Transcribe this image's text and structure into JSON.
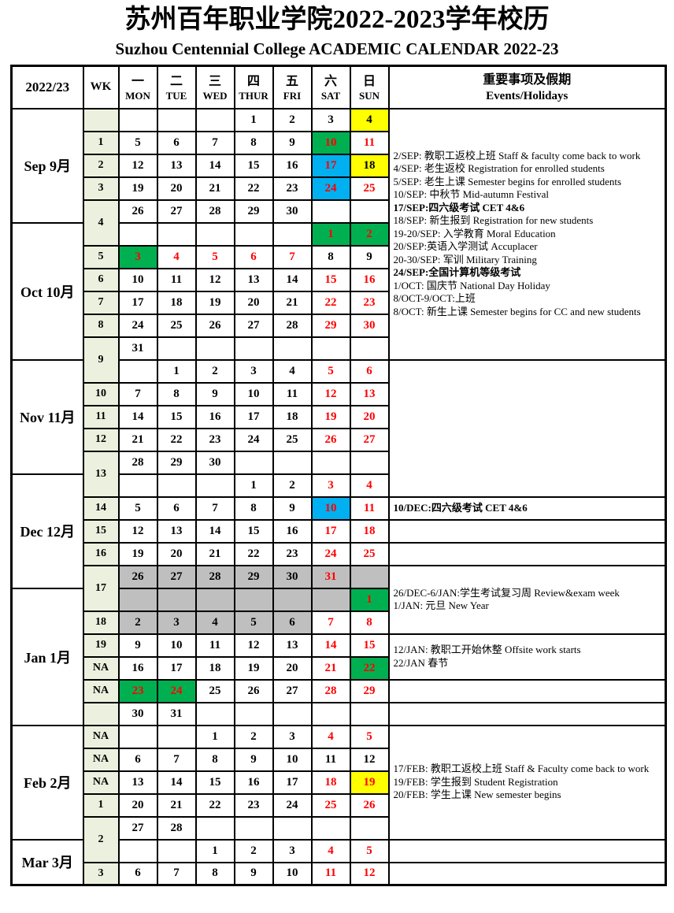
{
  "title": "苏州百年职业学院2022-2023学年校历",
  "subtitle": "Suzhou Centennial College  ACADEMIC CALENDAR 2022-23",
  "colors": {
    "holiday_text": "#ff0000",
    "festival_green": "#00b050",
    "exam_blue": "#00b0f0",
    "highlight_yellow": "#ffff00",
    "break_gray": "#bfbfbf",
    "week_column_bg": "#ebf1de"
  },
  "header": {
    "year": "2022/23",
    "wk": "WK",
    "days": [
      {
        "zh": "一",
        "en": "MON"
      },
      {
        "zh": "二",
        "en": "TUE"
      },
      {
        "zh": "三",
        "en": "WED"
      },
      {
        "zh": "四",
        "en": "THUR"
      },
      {
        "zh": "五",
        "en": "FRI"
      },
      {
        "zh": "六",
        "en": "SAT"
      },
      {
        "zh": "日",
        "en": "SUN"
      }
    ],
    "events_zh": "重要事项及假期",
    "events_en": "Events/Holidays"
  },
  "rows": [
    {
      "month": {
        "label": "Sep 9月",
        "span": 5
      },
      "wk": {
        "v": "",
        "span": 1
      },
      "days": [
        "",
        "",
        "",
        "1",
        "2",
        "3",
        {
          "v": "4",
          "c": "yellow"
        }
      ],
      "events": {
        "span": 11,
        "lines": [
          {
            "t": "2/SEP: 教职工返校上班 Staff & faculty come back to work"
          },
          {
            "t": "4/SEP: 老生返校 Registration for enrolled students"
          },
          {
            "t": "5/SEP: 老生上课 Semester begins for enrolled students"
          },
          {
            "t": "10/SEP: 中秋节 Mid-autumn Festival"
          },
          {
            "t": "17/SEP:四六级考试 CET 4&6",
            "b": true
          },
          {
            "t": "18/SEP: 新生报到 Registration for new students"
          },
          {
            "t": "19-20/SEP: 入学教育 Moral Education"
          },
          {
            "t": "20/SEP:英语入学测试  Accuplacer"
          },
          {
            "t": "20-30/SEP: 军训 Military Training"
          },
          {
            "t": "24/SEP:全国计算机等级考试",
            "b": true
          },
          {
            "t": "1/OCT: 国庆节 National Day Holiday"
          },
          {
            "t": "8/OCT-9/OCT:上班"
          },
          {
            "t": "8/OCT: 新生上课 Semester begins for CC and new students"
          }
        ]
      }
    },
    {
      "wk": {
        "v": "1"
      },
      "days": [
        "5",
        "6",
        "7",
        "8",
        "9",
        {
          "v": "10",
          "c": "green"
        },
        {
          "v": "11",
          "c": "red"
        }
      ]
    },
    {
      "wk": {
        "v": "2"
      },
      "days": [
        "12",
        "13",
        "14",
        "15",
        "16",
        {
          "v": "17",
          "c": "blue"
        },
        {
          "v": "18",
          "c": "yellow"
        }
      ]
    },
    {
      "wk": {
        "v": "3"
      },
      "days": [
        "19",
        "20",
        "21",
        "22",
        "23",
        {
          "v": "24",
          "c": "blue"
        },
        {
          "v": "25",
          "c": "red"
        }
      ]
    },
    {
      "wk": {
        "v": "4",
        "span": 2
      },
      "days": [
        "26",
        "27",
        "28",
        "29",
        "30",
        "",
        ""
      ]
    },
    {
      "month": {
        "label": "Oct 10月",
        "span": 6
      },
      "days": [
        "",
        "",
        "",
        "",
        "",
        {
          "v": "1",
          "c": "green"
        },
        {
          "v": "2",
          "c": "green"
        }
      ]
    },
    {
      "wk": {
        "v": "5"
      },
      "days": [
        {
          "v": "3",
          "c": "green"
        },
        {
          "v": "4",
          "c": "red"
        },
        {
          "v": "5",
          "c": "red"
        },
        {
          "v": "6",
          "c": "red"
        },
        {
          "v": "7",
          "c": "red"
        },
        "8",
        "9"
      ]
    },
    {
      "wk": {
        "v": "6"
      },
      "days": [
        "10",
        "11",
        "12",
        "13",
        "14",
        {
          "v": "15",
          "c": "red"
        },
        {
          "v": "16",
          "c": "red"
        }
      ]
    },
    {
      "wk": {
        "v": "7"
      },
      "days": [
        "17",
        "18",
        "19",
        "20",
        "21",
        {
          "v": "22",
          "c": "red"
        },
        {
          "v": "23",
          "c": "red"
        }
      ]
    },
    {
      "wk": {
        "v": "8"
      },
      "days": [
        "24",
        "25",
        "26",
        "27",
        "28",
        {
          "v": "29",
          "c": "red"
        },
        {
          "v": "30",
          "c": "red"
        }
      ]
    },
    {
      "wk": {
        "v": "9",
        "span": 2
      },
      "days": [
        "31",
        "",
        "",
        "",
        "",
        "",
        ""
      ]
    },
    {
      "month": {
        "label": "Nov 11月",
        "span": 5
      },
      "days": [
        "",
        "1",
        "2",
        "3",
        "4",
        {
          "v": "5",
          "c": "red"
        },
        {
          "v": "6",
          "c": "red"
        }
      ],
      "events": {
        "span": 6,
        "lines": []
      }
    },
    {
      "wk": {
        "v": "10"
      },
      "days": [
        "7",
        "8",
        "9",
        "10",
        "11",
        {
          "v": "12",
          "c": "red"
        },
        {
          "v": "13",
          "c": "red"
        }
      ]
    },
    {
      "wk": {
        "v": "11"
      },
      "days": [
        "14",
        "15",
        "16",
        "17",
        "18",
        {
          "v": "19",
          "c": "red"
        },
        {
          "v": "20",
          "c": "red"
        }
      ]
    },
    {
      "wk": {
        "v": "12"
      },
      "days": [
        "21",
        "22",
        "23",
        "24",
        "25",
        {
          "v": "26",
          "c": "red"
        },
        {
          "v": "27",
          "c": "red"
        }
      ]
    },
    {
      "wk": {
        "v": "13",
        "span": 2
      },
      "days": [
        "28",
        "29",
        "30",
        "",
        "",
        "",
        ""
      ]
    },
    {
      "month": {
        "label": "Dec 12月",
        "span": 5
      },
      "days": [
        "",
        "",
        "",
        "1",
        "2",
        {
          "v": "3",
          "c": "red"
        },
        {
          "v": "4",
          "c": "red"
        }
      ]
    },
    {
      "wk": {
        "v": "14"
      },
      "days": [
        "5",
        "6",
        "7",
        "8",
        "9",
        {
          "v": "10",
          "c": "blue"
        },
        {
          "v": "11",
          "c": "red"
        }
      ],
      "events": {
        "span": 1,
        "lines": [
          {
            "t": "10/DEC:四六级考试 CET 4&6",
            "b": true
          }
        ]
      }
    },
    {
      "wk": {
        "v": "15"
      },
      "days": [
        "12",
        "13",
        "14",
        "15",
        "16",
        {
          "v": "17",
          "c": "red"
        },
        {
          "v": "18",
          "c": "red"
        }
      ],
      "events": {
        "span": 1,
        "lines": []
      }
    },
    {
      "wk": {
        "v": "16"
      },
      "days": [
        "19",
        "20",
        "21",
        "22",
        "23",
        {
          "v": "24",
          "c": "red"
        },
        {
          "v": "25",
          "c": "red"
        }
      ],
      "events": {
        "span": 1,
        "lines": []
      }
    },
    {
      "wk": {
        "v": "17",
        "span": 2
      },
      "days": [
        {
          "v": "26",
          "c": "gray"
        },
        {
          "v": "27",
          "c": "gray"
        },
        {
          "v": "28",
          "c": "gray"
        },
        {
          "v": "29",
          "c": "gray"
        },
        {
          "v": "30",
          "c": "gray"
        },
        {
          "v": "31",
          "c": "grayred"
        },
        {
          "v": "",
          "c": "gray"
        }
      ],
      "events": {
        "span": 3,
        "lines": [
          {
            "t": "26/DEC-6/JAN:学生考试复习周 Review&exam week"
          },
          {
            "t": "1/JAN: 元旦 New Year"
          }
        ]
      }
    },
    {
      "month": {
        "label": "Jan 1月",
        "span": 6
      },
      "days": [
        {
          "v": "",
          "c": "gray"
        },
        {
          "v": "",
          "c": "gray"
        },
        {
          "v": "",
          "c": "gray"
        },
        {
          "v": "",
          "c": "gray"
        },
        {
          "v": "",
          "c": "gray"
        },
        {
          "v": "",
          "c": "gray"
        },
        {
          "v": "1",
          "c": "green"
        }
      ]
    },
    {
      "wk": {
        "v": "18"
      },
      "days": [
        {
          "v": "2",
          "c": "gray"
        },
        {
          "v": "3",
          "c": "gray"
        },
        {
          "v": "4",
          "c": "gray"
        },
        {
          "v": "5",
          "c": "gray"
        },
        {
          "v": "6",
          "c": "gray"
        },
        {
          "v": "7",
          "c": "red"
        },
        {
          "v": "8",
          "c": "red"
        }
      ]
    },
    {
      "wk": {
        "v": "19"
      },
      "days": [
        "9",
        "10",
        "11",
        "12",
        "13",
        {
          "v": "14",
          "c": "red"
        },
        {
          "v": "15",
          "c": "red"
        }
      ],
      "events": {
        "span": 2,
        "lines": [
          {
            "t": "12/JAN: 教职工开始休整 Offsite work starts"
          },
          {
            "t": "22/JAN 春节"
          }
        ]
      }
    },
    {
      "wk": {
        "v": "NA"
      },
      "days": [
        "16",
        "17",
        "18",
        "19",
        "20",
        {
          "v": "21",
          "c": "red"
        },
        {
          "v": "22",
          "c": "green"
        }
      ]
    },
    {
      "wk": {
        "v": "NA"
      },
      "days": [
        {
          "v": "23",
          "c": "green"
        },
        {
          "v": "24",
          "c": "green"
        },
        "25",
        "26",
        "27",
        {
          "v": "28",
          "c": "red"
        },
        {
          "v": "29",
          "c": "red"
        }
      ],
      "events": {
        "span": 1,
        "lines": []
      }
    },
    {
      "wk": {
        "v": ""
      },
      "days": [
        "30",
        "31",
        "",
        "",
        "",
        "",
        ""
      ],
      "events": {
        "span": 1,
        "lines": []
      }
    },
    {
      "month": {
        "label": "Feb 2月",
        "span": 5
      },
      "wk": {
        "v": "NA"
      },
      "days": [
        "",
        "",
        {
          "v": "1",
          "c": "thin"
        },
        "2",
        "3",
        {
          "v": "4",
          "c": "red"
        },
        {
          "v": "5",
          "c": "red"
        }
      ],
      "events": {
        "span": 5,
        "lines": [
          {
            "t": "17/FEB: 教职工返校上班 Staff & Faculty come back to work"
          },
          {
            "t": "19/FEB: 学生报到 Student Registration"
          },
          {
            "t": "20/FEB: 学生上课 New semester begins"
          }
        ]
      }
    },
    {
      "wk": {
        "v": "NA"
      },
      "days": [
        "6",
        "7",
        "8",
        "9",
        "10",
        "11",
        "12"
      ]
    },
    {
      "wk": {
        "v": "NA"
      },
      "days": [
        "13",
        "14",
        "15",
        "16",
        "17",
        {
          "v": "18",
          "c": "red"
        },
        {
          "v": "19",
          "c": "yellowred"
        }
      ]
    },
    {
      "wk": {
        "v": "1"
      },
      "days": [
        "20",
        "21",
        "22",
        "23",
        "24",
        {
          "v": "25",
          "c": "red"
        },
        {
          "v": "26",
          "c": "red"
        }
      ]
    },
    {
      "wk": {
        "v": "2",
        "span": 2
      },
      "days": [
        "27",
        "28",
        "",
        "",
        "",
        "",
        ""
      ]
    },
    {
      "month": {
        "label": "Mar 3月",
        "span": 2
      },
      "days": [
        "",
        "",
        "1",
        "2",
        "3",
        {
          "v": "4",
          "c": "red"
        },
        {
          "v": "5",
          "c": "red"
        }
      ],
      "events": {
        "span": 1,
        "lines": []
      }
    },
    {
      "wk": {
        "v": "3"
      },
      "days": [
        "6",
        "7",
        "8",
        "9",
        "10",
        {
          "v": "11",
          "c": "red"
        },
        {
          "v": "12",
          "c": "red"
        }
      ],
      "events": {
        "span": 1,
        "lines": []
      }
    }
  ]
}
